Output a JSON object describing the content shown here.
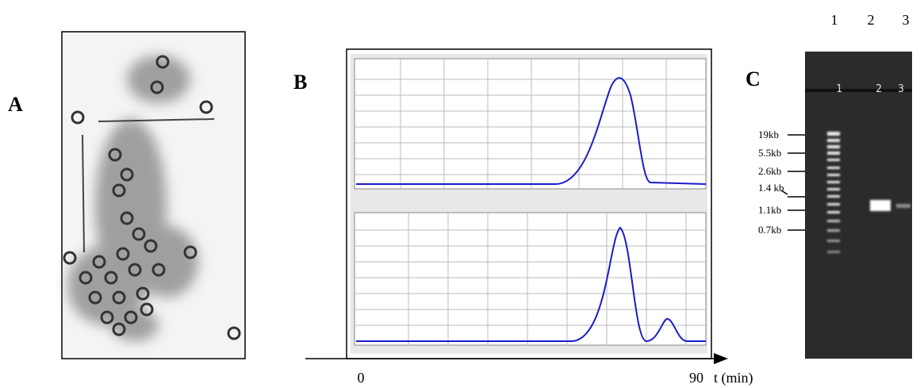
{
  "panels": [
    {
      "label": "A"
    },
    {
      "label": "B",
      "x_axis": {
        "start": "0",
        "end": "90",
        "unit": "t (min)"
      }
    },
    {
      "label": "C",
      "lanes": [
        "1",
        "2",
        "3"
      ],
      "gel_lane_labels": [
        "1",
        "2",
        "3"
      ],
      "markers": [
        "19kb",
        "5.5kb",
        "2.6kb",
        "1.4 kb",
        "1.1kb",
        "0.7kb"
      ]
    }
  ]
}
